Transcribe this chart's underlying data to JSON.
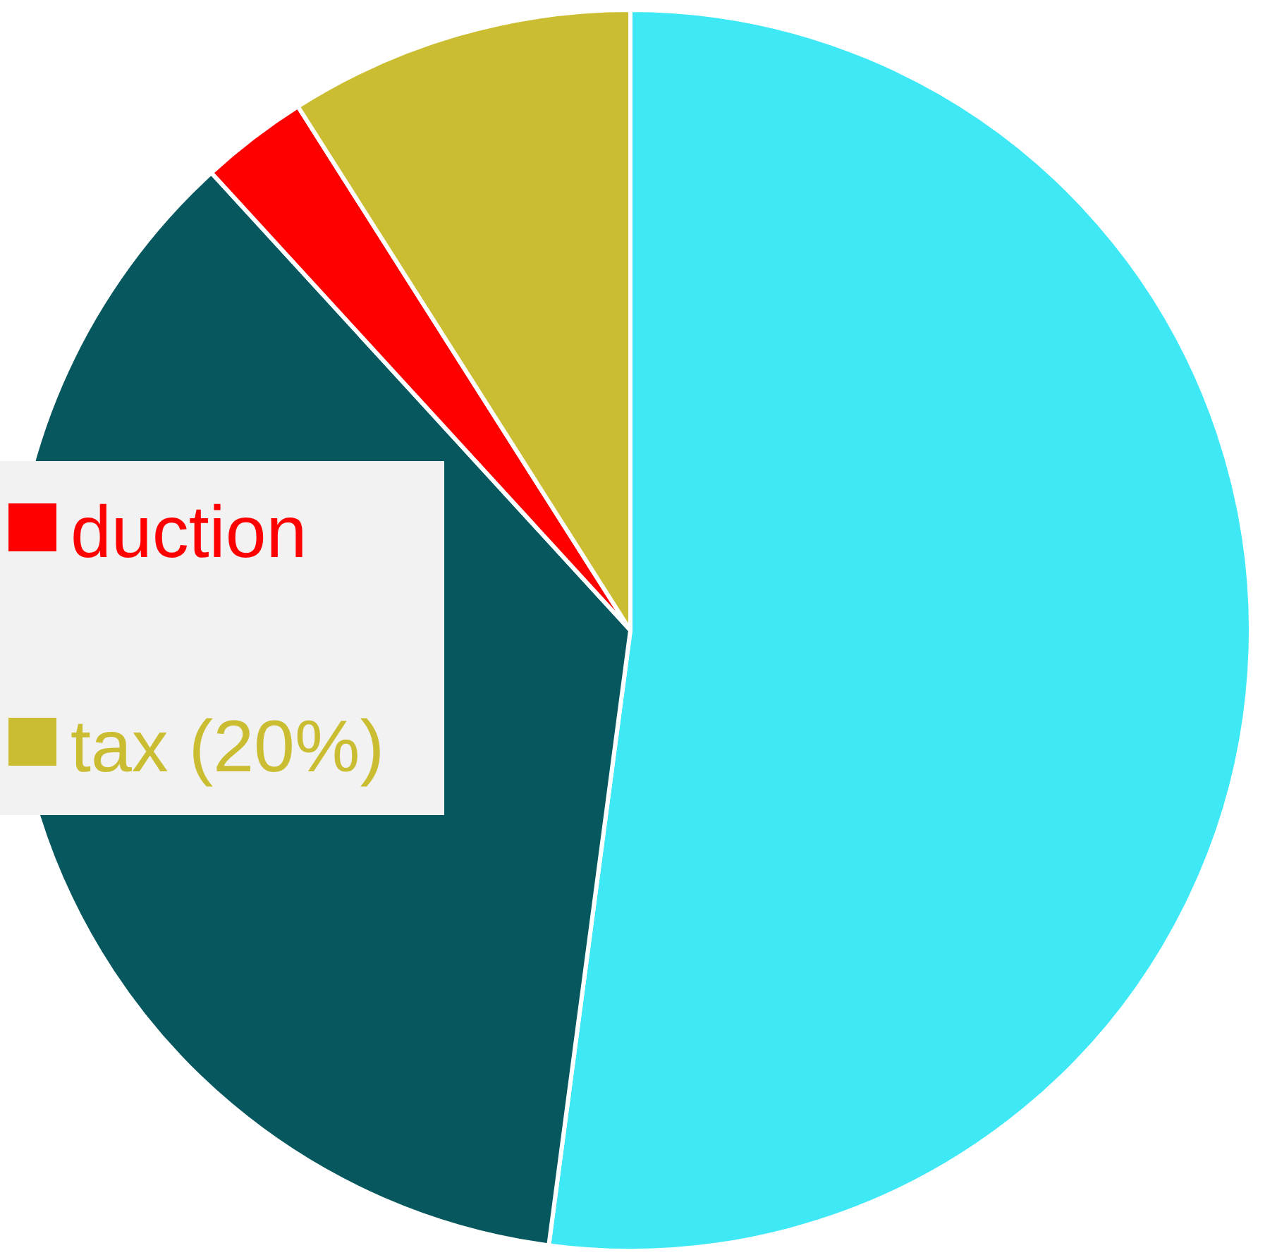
{
  "chart_data": {
    "type": "pie",
    "categories": [
      null,
      null,
      "duction",
      "tax (20%)"
    ],
    "values": [
      52.1,
      36.1,
      2.8,
      9.0
    ],
    "colors": [
      "#3ee8f5",
      "#06585e",
      "#ff0000",
      "#cabd32"
    ],
    "legend": "left"
  }
}
